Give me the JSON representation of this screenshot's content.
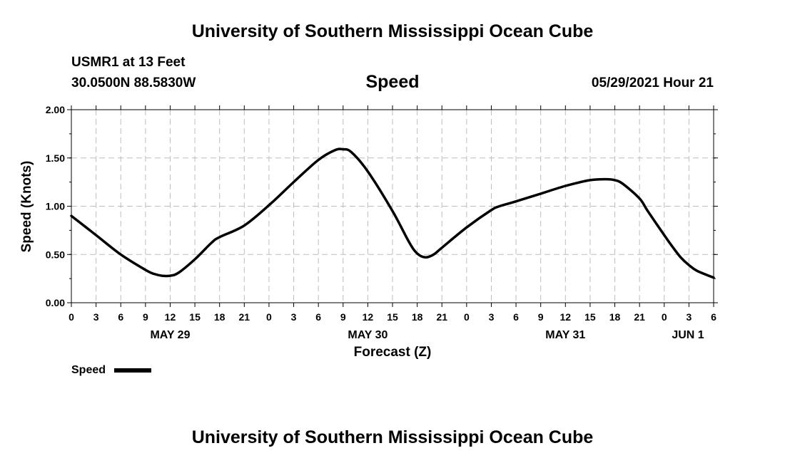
{
  "header": {
    "title": "University of Southern Mississippi Ocean Cube",
    "station": "USMR1 at 13 Feet",
    "coordinates": "30.0500N  88.5830W",
    "datetime": "05/29/2021 Hour 21"
  },
  "footer": {
    "title": "University of Southern Mississippi Ocean Cube"
  },
  "chart_data": {
    "type": "line",
    "title": "Speed",
    "xlabel": "Forecast (Z)",
    "ylabel": "Speed (Knots)",
    "ylim": [
      0,
      2
    ],
    "yticks": [
      "0.00",
      "0.50",
      "1.00",
      "1.50",
      "2.00"
    ],
    "xlim_hours": [
      0,
      78
    ],
    "xtick_labels": [
      "0",
      "3",
      "6",
      "9",
      "12",
      "15",
      "18",
      "21",
      "0",
      "3",
      "6",
      "9",
      "12",
      "15",
      "18",
      "21",
      "0",
      "3",
      "6",
      "9",
      "12",
      "15",
      "18",
      "21",
      "0",
      "3",
      "6"
    ],
    "day_labels": [
      {
        "label": "MAY 29",
        "hour": 12
      },
      {
        "label": "MAY 30",
        "hour": 36
      },
      {
        "label": "MAY 31",
        "hour": 60
      },
      {
        "label": "JUN 1",
        "hour": 78
      }
    ],
    "grid": true,
    "legend": "bottom-left",
    "series": [
      {
        "name": "Speed",
        "color": "#000000",
        "x_hours": [
          0,
          3,
          6,
          9,
          10,
          11,
          12,
          13,
          15,
          17,
          18,
          21,
          24,
          27,
          30,
          32,
          33,
          34,
          36,
          39,
          41,
          42,
          43,
          44,
          45,
          48,
          51,
          52,
          54,
          57,
          60,
          63,
          65,
          66,
          67,
          69,
          70,
          72,
          73,
          74,
          75,
          76,
          78
        ],
        "values": [
          0.9,
          0.7,
          0.5,
          0.34,
          0.3,
          0.28,
          0.28,
          0.31,
          0.45,
          0.62,
          0.68,
          0.8,
          1.01,
          1.25,
          1.48,
          1.58,
          1.59,
          1.56,
          1.36,
          0.95,
          0.63,
          0.51,
          0.47,
          0.5,
          0.57,
          0.78,
          0.96,
          1.0,
          1.05,
          1.13,
          1.21,
          1.27,
          1.28,
          1.27,
          1.23,
          1.08,
          0.95,
          0.7,
          0.58,
          0.47,
          0.39,
          0.33,
          0.26
        ]
      }
    ]
  }
}
